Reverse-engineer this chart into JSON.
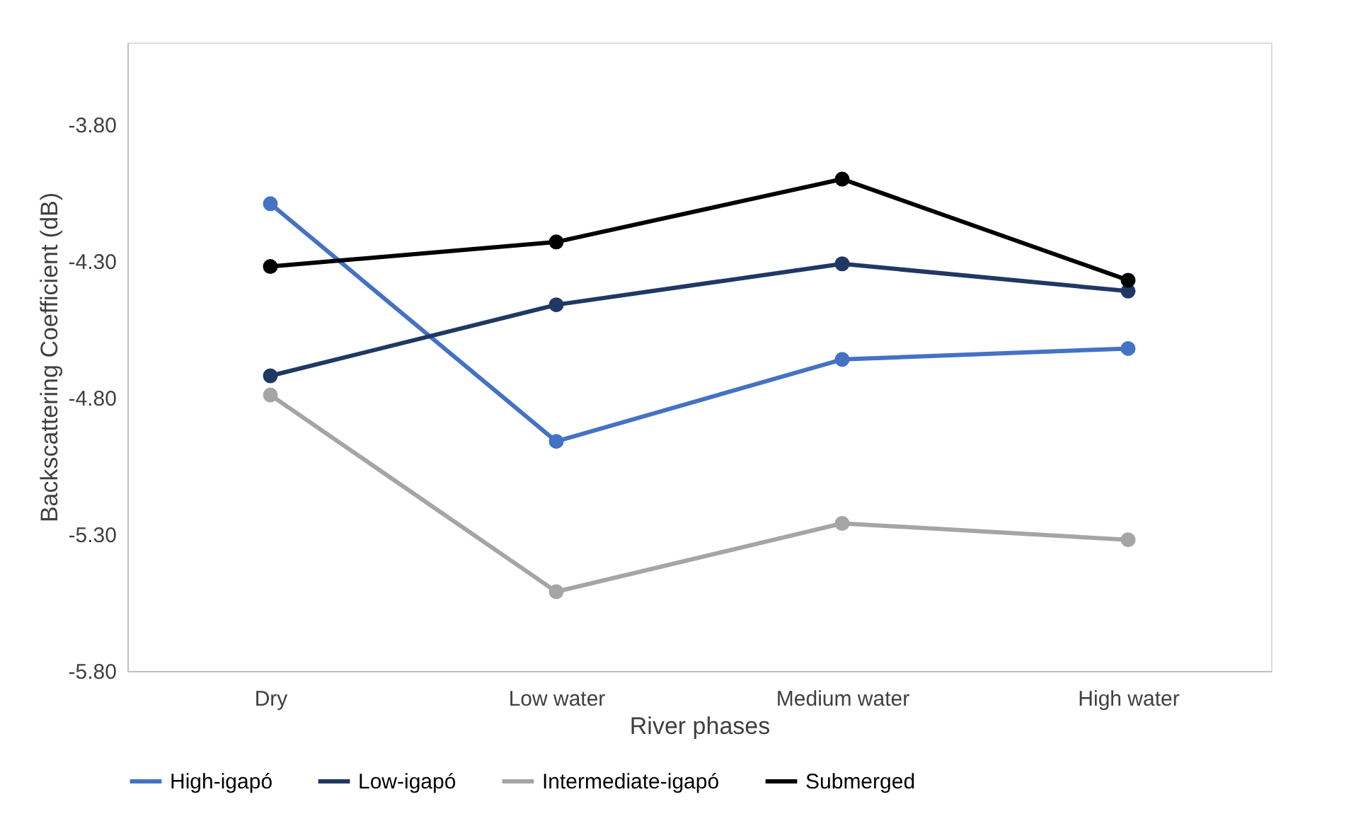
{
  "chart_data": {
    "type": "line",
    "xlabel": "River phases",
    "ylabel": "Backscattering Coefficient (dB)",
    "categories": [
      "Dry",
      "Low water",
      "Medium water",
      "High water"
    ],
    "series": [
      {
        "name": "High-igapó",
        "color": "#4472c4",
        "values": [
          -4.09,
          -4.96,
          -4.66,
          -4.62
        ]
      },
      {
        "name": "Low-igapó",
        "color": "#203864",
        "values": [
          -4.72,
          -4.46,
          -4.31,
          -4.41
        ]
      },
      {
        "name": "Intermediate-igapó",
        "color": "#a5a5a5",
        "values": [
          -4.79,
          -5.51,
          -5.26,
          -5.32
        ]
      },
      {
        "name": "Submerged",
        "color": "#000000",
        "values": [
          -4.32,
          -4.23,
          -4.0,
          -4.37
        ]
      }
    ],
    "ylim": [
      -5.8,
      -3.5
    ],
    "yticks": [
      {
        "value": -5.8,
        "label": "-5.80"
      },
      {
        "value": -5.3,
        "label": "-5.30"
      },
      {
        "value": -4.8,
        "label": "-4.80"
      },
      {
        "value": -4.3,
        "label": "-4.30"
      },
      {
        "value": -3.8,
        "label": "-3.80"
      }
    ],
    "grid": false,
    "legend": "bottom",
    "marker": "circle",
    "line_style": "solid"
  }
}
